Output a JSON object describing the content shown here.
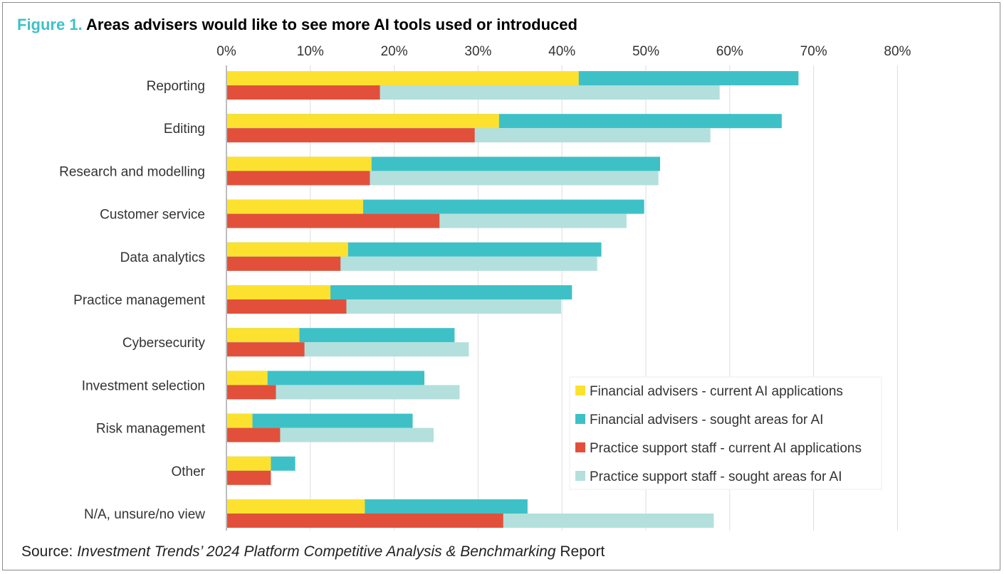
{
  "title": {
    "figure_label": "Figure 1.",
    "text": "Areas advisers would like to see more AI tools used or introduced"
  },
  "source": {
    "prefix": "Source: ",
    "italic": "Investment Trends’ 2024 Platform Competitive Analysis & Benchmarking",
    "suffix": " Report"
  },
  "colors": {
    "fa_current": "#fce22f",
    "fa_sought": "#3ec1c6",
    "ps_current": "#e2503b",
    "ps_sought": "#b3e0dc",
    "grid": "#dddddd",
    "axis": "#bdbdbd",
    "title_accent": "#3ec1c6"
  },
  "chart_data": {
    "type": "bar",
    "orientation": "horizontal",
    "stacked_pairs": true,
    "xlim": [
      0,
      80
    ],
    "x_ticks": [
      "0%",
      "10%",
      "20%",
      "30%",
      "40%",
      "50%",
      "60%",
      "70%",
      "80%"
    ],
    "grid": true,
    "legend_position": "bottom-right",
    "categories": [
      "Reporting",
      "Editing",
      "Research and modelling",
      "Customer service",
      "Data analytics",
      "Practice management",
      "Cybersecurity",
      "Investment selection",
      "Risk management",
      "Other",
      "N/A, unsure/no view"
    ],
    "series": [
      {
        "name": "Financial advisers - current AI applications",
        "group": "financial_advisers",
        "values": [
          42,
          32.5,
          17.3,
          16.3,
          14.5,
          12.4,
          8.7,
          4.9,
          3.1,
          5.3,
          16.5
        ]
      },
      {
        "name": "Financial advisers - sought areas for AI",
        "group": "financial_advisers",
        "values": [
          68.2,
          66.2,
          51.7,
          49.8,
          44.7,
          41.2,
          27.2,
          23.6,
          22.2,
          8.2,
          35.9
        ]
      },
      {
        "name": "Practice support staff - current AI applications",
        "group": "practice_support",
        "values": [
          18.3,
          29.6,
          17.1,
          25.4,
          13.6,
          14.3,
          9.3,
          5.9,
          6.4,
          5.3,
          33
        ]
      },
      {
        "name": "Practice support staff - sought areas for AI",
        "group": "practice_support",
        "values": [
          58.8,
          57.7,
          51.5,
          47.7,
          44.2,
          39.9,
          28.9,
          27.8,
          24.7,
          0,
          58.1
        ]
      }
    ]
  }
}
